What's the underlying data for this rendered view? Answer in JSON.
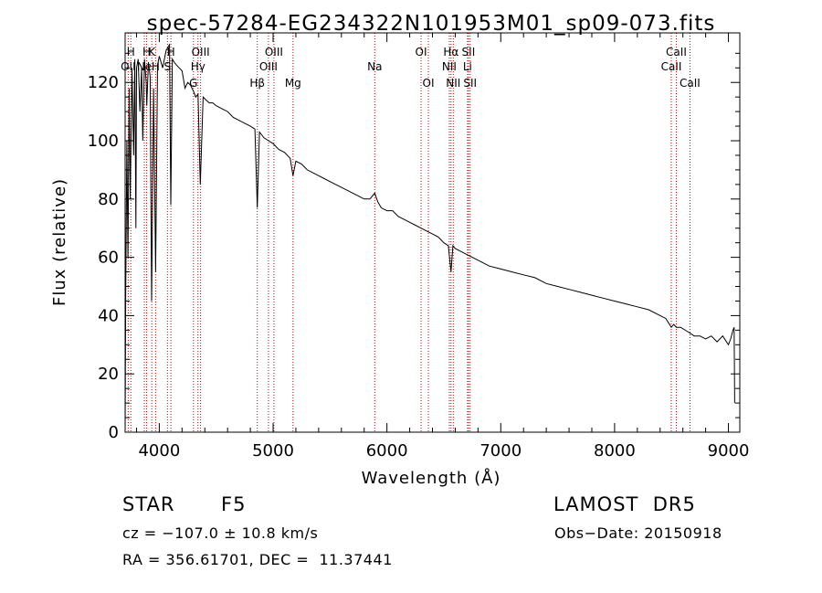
{
  "chart_data": {
    "type": "line",
    "title": "spec-57284-EG234322N101953M01_sp09-073.fits",
    "xlabel": "Wavelength (Å)",
    "ylabel": "Flux (relative)",
    "xlim": [
      3700,
      9100
    ],
    "ylim": [
      0,
      137
    ],
    "xticks": [
      4000,
      5000,
      6000,
      7000,
      8000,
      9000
    ],
    "yticks": [
      0,
      20,
      40,
      60,
      80,
      100,
      120
    ],
    "grid": false,
    "line_color": "#000000",
    "marker_color": "#cc0000",
    "spectrum": {
      "x": [
        3700,
        3705,
        3715,
        3725,
        3735,
        3745,
        3760,
        3775,
        3785,
        3795,
        3800,
        3815,
        3830,
        3845,
        3855,
        3870,
        3885,
        3890,
        3905,
        3920,
        3933,
        3950,
        3968,
        3985,
        4000,
        4030,
        4060,
        4090,
        4101,
        4115,
        4130,
        4150,
        4175,
        4200,
        4226,
        4250,
        4275,
        4300,
        4320,
        4340,
        4360,
        4385,
        4410,
        4440,
        4470,
        4500,
        4550,
        4600,
        4650,
        4700,
        4750,
        4800,
        4840,
        4861,
        4880,
        4920,
        4960,
        5000,
        5050,
        5100,
        5150,
        5175,
        5200,
        5250,
        5300,
        5350,
        5400,
        5450,
        5500,
        5550,
        5600,
        5650,
        5700,
        5750,
        5800,
        5850,
        5893,
        5920,
        5950,
        6000,
        6050,
        6100,
        6150,
        6200,
        6250,
        6300,
        6350,
        6400,
        6450,
        6500,
        6540,
        6563,
        6580,
        6600,
        6650,
        6700,
        6750,
        6800,
        6900,
        7000,
        7100,
        7200,
        7300,
        7400,
        7500,
        7600,
        7700,
        7800,
        7900,
        8000,
        8100,
        8200,
        8300,
        8400,
        8450,
        8498,
        8520,
        8542,
        8580,
        8662,
        8700,
        8750,
        8800,
        8850,
        8900,
        8950,
        9000,
        9020,
        9040,
        9050,
        9055
      ],
      "y": [
        0,
        45,
        100,
        60,
        118,
        80,
        125,
        95,
        128,
        70,
        125,
        128,
        110,
        125,
        100,
        128,
        120,
        112,
        127,
        122,
        45,
        118,
        55,
        126,
        129,
        125,
        131,
        133,
        78,
        128,
        127,
        126,
        125,
        124,
        118,
        120,
        119,
        117,
        115,
        116,
        85,
        115,
        114,
        113,
        113,
        112,
        111,
        110,
        108,
        107,
        106,
        105,
        104,
        77,
        103,
        101,
        100,
        99,
        97,
        96,
        94,
        88,
        93,
        92,
        90,
        89,
        88,
        87,
        86,
        85,
        84,
        83,
        82,
        81,
        80,
        80,
        82,
        79,
        77,
        76,
        76,
        74,
        73,
        72,
        71,
        70,
        69,
        68,
        67,
        65,
        64,
        55,
        64,
        63,
        62,
        61,
        60,
        59,
        57,
        56,
        55,
        54,
        53,
        51,
        50,
        49,
        48,
        47,
        46,
        45,
        44,
        43,
        42,
        40,
        39,
        36,
        37,
        36,
        36,
        34,
        33,
        33,
        32,
        33,
        31,
        33,
        30,
        32,
        35,
        36,
        10
      ]
    },
    "line_markers": [
      {
        "label": "OII",
        "wavelength": 3727,
        "row": 2
      },
      {
        "label": "H",
        "wavelength": 3750,
        "row": 1
      },
      {
        "label": "Ne",
        "wavelength": 3869,
        "row": 2
      },
      {
        "label": "H",
        "wavelength": 3889,
        "row": 1
      },
      {
        "label": "K",
        "wavelength": 3934,
        "row": 1
      },
      {
        "label": "H",
        "wavelength": 3968,
        "row": 2
      },
      {
        "label": "S",
        "wavelength": 4072,
        "row": 2
      },
      {
        "label": "H",
        "wavelength": 4102,
        "row": 1
      },
      {
        "label": "G",
        "wavelength": 4300,
        "row": 3
      },
      {
        "label": "Hγ",
        "wavelength": 4340,
        "row": 2
      },
      {
        "label": "OIII",
        "wavelength": 4363,
        "row": 1
      },
      {
        "label": "Hβ",
        "wavelength": 4861,
        "row": 3
      },
      {
        "label": "OIII",
        "wavelength": 4959,
        "row": 2
      },
      {
        "label": "OIII",
        "wavelength": 5007,
        "row": 1
      },
      {
        "label": "Mg",
        "wavelength": 5175,
        "row": 3
      },
      {
        "label": "Na",
        "wavelength": 5893,
        "row": 2
      },
      {
        "label": "OI",
        "wavelength": 6300,
        "row": 1
      },
      {
        "label": "OI",
        "wavelength": 6364,
        "row": 3
      },
      {
        "label": "NII",
        "wavelength": 6548,
        "row": 2
      },
      {
        "label": "Hα",
        "wavelength": 6563,
        "row": 1
      },
      {
        "label": "NII",
        "wavelength": 6583,
        "row": 3
      },
      {
        "label": "Li",
        "wavelength": 6708,
        "row": 2
      },
      {
        "label": "SII",
        "wavelength": 6716,
        "row": 1
      },
      {
        "label": "SII",
        "wavelength": 6731,
        "row": 3
      },
      {
        "label": "CaII",
        "wavelength": 8498,
        "row": 2
      },
      {
        "label": "CaII",
        "wavelength": 8542,
        "row": 1
      },
      {
        "label": "CaII",
        "wavelength": 8662,
        "row": 3
      }
    ]
  },
  "footer": {
    "object_class": "STAR",
    "subclass": "F5",
    "survey": "LAMOST  DR5",
    "cz": "cz = −107.0 ± 10.8 km/s",
    "obs_date": "Obs−Date: 20150918",
    "coords": "RA = 356.61701, DEC =  11.37441"
  }
}
